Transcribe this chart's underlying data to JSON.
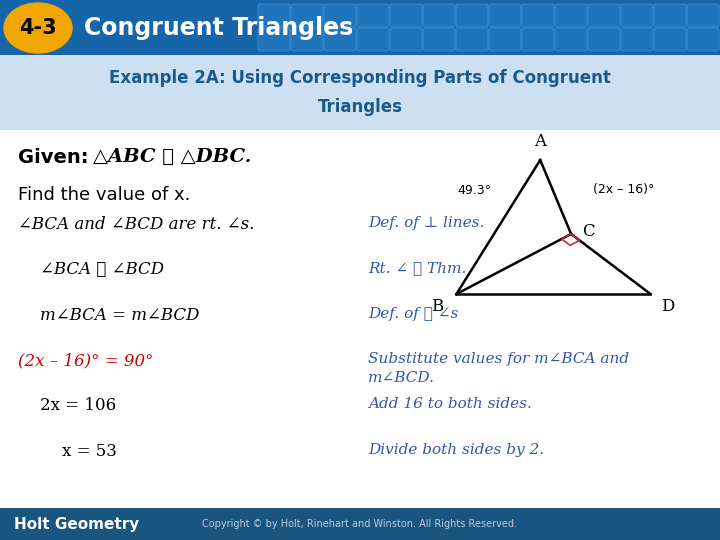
{
  "title_badge": "4-3",
  "title_text": "Congruent Triangles",
  "header_bg": "#1565a8",
  "badge_bg": "#f0a800",
  "ex_bg": "#d6e8f5",
  "ex_line1": "Example 2A: Using Corresponding Parts of Congruent",
  "ex_line2": "Triangles",
  "ex_color": "#1a5a8a",
  "body_bg": "#ffffff",
  "given_bold": "Given: ",
  "given_math": "△ABC ≅ △DBC.",
  "find_text": "Find the value of x.",
  "rows": [
    {
      "left": "∠BCA and ∠BCD are rt. ∠s.",
      "right": "Def. of ⊥ lines.",
      "left_style": "italic",
      "indent": 0
    },
    {
      "left": "∠BCA ≅ ∠BCD",
      "right": "Rt. ∠ ≅ Thm.",
      "left_style": "italic",
      "indent": 1
    },
    {
      "left": "m∠BCA = m∠BCD",
      "right": "Def. of ≅ ∠s",
      "left_style": "italic",
      "indent": 1
    },
    {
      "left": "(2x – 16)° = 90°",
      "right": "Substitute values for m∠BCA and\nm∠BCD.",
      "left_style": "red_italic",
      "indent": 0
    },
    {
      "left": "2x = 106",
      "right": "Add 16 to both sides.",
      "left_style": "normal",
      "indent": 1
    },
    {
      "left": "x = 53",
      "right": "Divide both sides by 2.",
      "left_style": "normal",
      "indent": 2
    }
  ],
  "footer_text": "Holt Geometry",
  "footer_bg": "#1a5580",
  "footer_copyright": "Copyright © by Holt, Rinehart and Winston. All Rights Reserved.",
  "tri_A": [
    0.38,
    0.97
  ],
  "tri_B": [
    0.0,
    0.3
  ],
  "tri_C": [
    0.52,
    0.6
  ],
  "tri_D": [
    0.88,
    0.3
  ],
  "angle_49": "49.3°",
  "angle_2x": "(2x – 16)°",
  "right_angle_color": "#cc2222",
  "blue_text": "#3355aa",
  "red_text": "#cc0000"
}
